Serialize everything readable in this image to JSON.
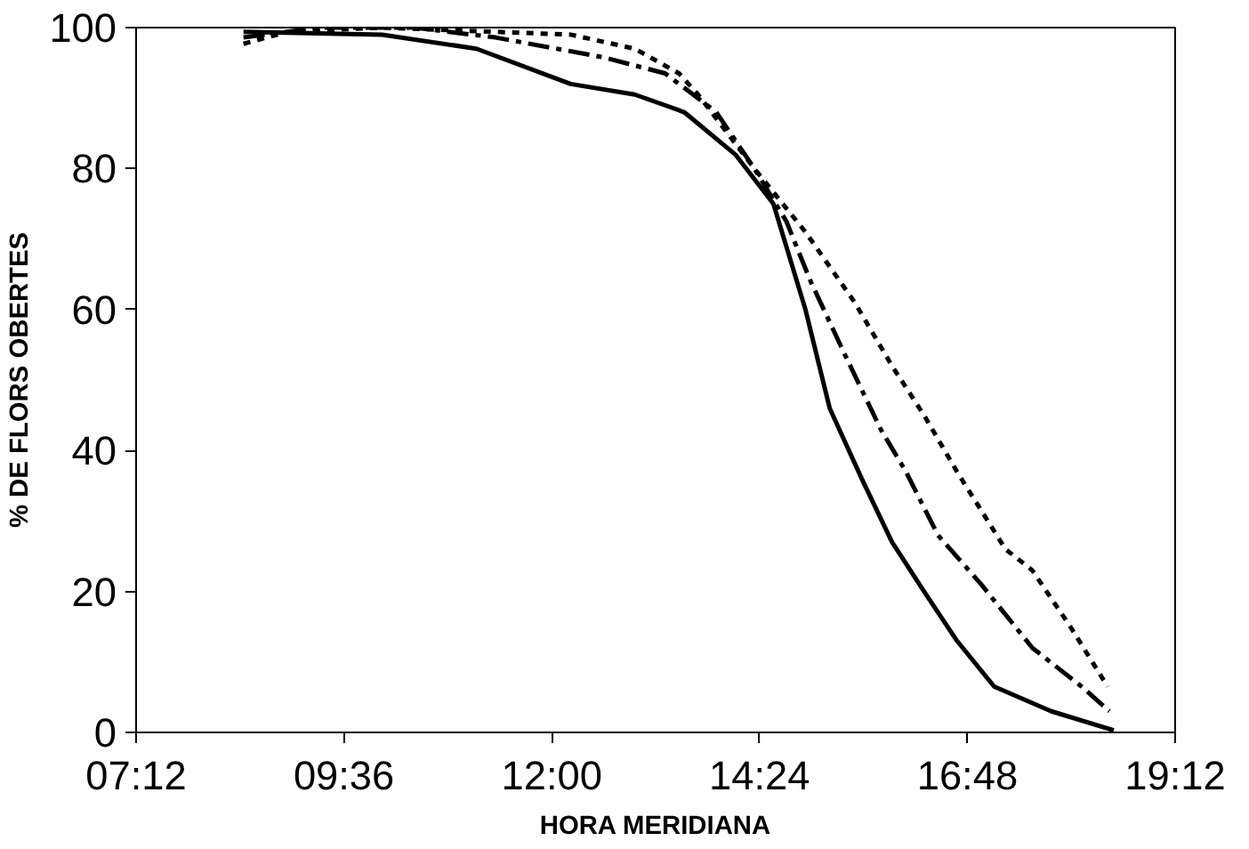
{
  "chart_data": {
    "type": "line",
    "xlabel": "HORA MERIDIANA",
    "ylabel": "% DE FLORS OBERTES",
    "xlim": [
      7.2,
      19.2
    ],
    "ylim": [
      0,
      100
    ],
    "xticks": [
      {
        "value": 7.2,
        "label": "07:12"
      },
      {
        "value": 9.6,
        "label": "09:36"
      },
      {
        "value": 12.0,
        "label": "12:00"
      },
      {
        "value": 14.4,
        "label": "14:24"
      },
      {
        "value": 16.8,
        "label": "16:48"
      },
      {
        "value": 19.2,
        "label": "19:12"
      }
    ],
    "yticks": [
      0,
      20,
      40,
      60,
      80,
      100
    ],
    "grid": false,
    "marker": "none",
    "series": [
      {
        "color": "#000000",
        "line_style": "solid",
        "x": [
          8.44,
          10.04,
          11.13,
          12.22,
          12.96,
          13.53,
          14.12,
          14.56,
          14.93,
          15.21,
          15.58,
          15.93,
          16.3,
          16.68,
          17.11,
          17.77,
          18.49
        ],
        "values": [
          99.4,
          99,
          97,
          92,
          90.5,
          88,
          82,
          75,
          60,
          46,
          36,
          27,
          20,
          13,
          6.5,
          3,
          0.3
        ]
      },
      {
        "color": "#000000",
        "line_style": "dashed",
        "x": [
          8.44,
          9.32,
          10.41,
          11.35,
          12.59,
          13.31,
          13.9,
          14.34,
          14.71,
          14.99,
          15.37,
          15.8,
          16.09,
          16.46,
          16.96,
          17.55,
          18.12,
          18.44
        ],
        "values": [
          98.6,
          100,
          100,
          98.6,
          95.8,
          93.5,
          88,
          80,
          72.5,
          64,
          54,
          43,
          37,
          28,
          21,
          12,
          6.5,
          3
        ]
      },
      {
        "color": "#000000",
        "line_style": "dotted",
        "x": [
          8.44,
          8.95,
          10.04,
          12.22,
          12.96,
          13.47,
          13.69,
          14.34,
          14.93,
          15.5,
          15.93,
          16.3,
          16.68,
          17.24,
          17.55,
          17.99,
          18.42
        ],
        "values": [
          97.7,
          99.4,
          100,
          99,
          97,
          93.5,
          90.5,
          80,
          71,
          61,
          52,
          45,
          37,
          26,
          23,
          15,
          6.5
        ]
      }
    ]
  }
}
